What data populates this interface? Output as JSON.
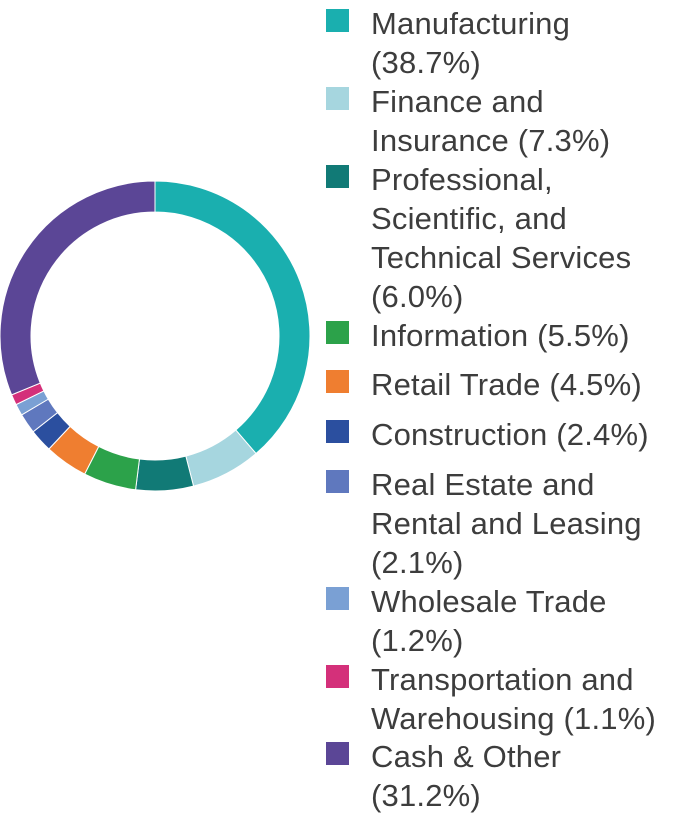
{
  "chart_data": {
    "type": "pie",
    "style": "donut",
    "legend_position": "right",
    "slices": [
      {
        "label": "Manufacturing (38.7%)",
        "value": 38.7,
        "color": "#1aafaf"
      },
      {
        "label": "Finance and Insurance (7.3%)",
        "value": 7.3,
        "color": "#a6d6df"
      },
      {
        "label": "Professional, Scientific, and Technical Services (6.0%)",
        "value": 6.0,
        "color": "#117a76"
      },
      {
        "label": "Information (5.5%)",
        "value": 5.5,
        "color": "#2ca24a"
      },
      {
        "label": "Retail Trade (4.5%)",
        "value": 4.5,
        "color": "#ef7e30"
      },
      {
        "label": "Construction (2.4%)",
        "value": 2.4,
        "color": "#2b4f9f"
      },
      {
        "label": "Real Estate and Rental and Leasing (2.1%)",
        "value": 2.1,
        "color": "#5f78be"
      },
      {
        "label": "Wholesale Trade (1.2%)",
        "value": 1.2,
        "color": "#7aa0d4"
      },
      {
        "label": "Transportation and Warehousing (1.1%)",
        "value": 1.1,
        "color": "#d4307a"
      },
      {
        "label": "Cash & Other (31.2%)",
        "value": 31.2,
        "color": "#5b4696"
      }
    ]
  }
}
